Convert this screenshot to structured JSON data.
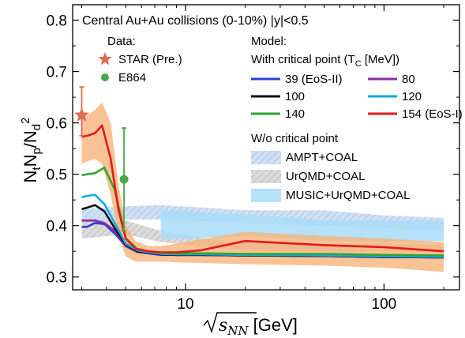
{
  "chart_data": {
    "type": "line",
    "title": "Central Au+Au collisions (0-10%) |y|<0.5",
    "ylabel": {
      "main": "N",
      "sub1": "t",
      "mid": "N",
      "sub2": "p",
      "slash": "/N",
      "sub3": "d",
      "sup": "2"
    },
    "xlabel": {
      "math": "s",
      "sub": "NN",
      "unit": " [GeV]"
    },
    "x_scale": "log",
    "xlim": [
      2.7,
      240
    ],
    "ylim": [
      0.275,
      0.83
    ],
    "x_ticks": [
      10,
      100
    ],
    "x_tick_labels": [
      "10",
      "100"
    ],
    "y_ticks": [
      0.3,
      0.4,
      0.5,
      0.6,
      0.7,
      0.8
    ],
    "y_tick_labels": [
      "0.3",
      "0.4",
      "0.5",
      "0.6",
      "0.7",
      "0.8"
    ],
    "grid": false,
    "legend_placement": "top-right",
    "data_header": "Data:",
    "model_header": "Model:",
    "critical_header": "With critical point (T",
    "critical_header_sub": "C",
    "critical_header_end": " [MeV])",
    "nocritical_header": "W/o critical point",
    "experiments": [
      {
        "name": "STAR (Pre.)",
        "marker": "star",
        "color": "#e06a52",
        "x": 3.0,
        "y": 0.615,
        "yerr_low": 0.04,
        "yerr_high": 0.055
      },
      {
        "name": "E864",
        "marker": "circle",
        "color": "#49a84a",
        "x": 4.9,
        "y": 0.49,
        "yerr_low": 0.1,
        "yerr_high": 0.1
      }
    ],
    "series": [
      {
        "name": "39 (EoS-II)",
        "color": "#2b3fd6",
        "x": [
          3.0,
          3.2,
          3.5,
          3.9,
          4.4,
          5.0,
          5.7,
          6.5,
          7.5,
          9,
          12,
          20,
          50,
          100,
          200
        ],
        "y": [
          0.397,
          0.398,
          0.405,
          0.403,
          0.385,
          0.36,
          0.349,
          0.346,
          0.343,
          0.343,
          0.343,
          0.342,
          0.341,
          0.339,
          0.338
        ]
      },
      {
        "name": "80",
        "color": "#8e2aa8",
        "x": [
          3.0,
          3.2,
          3.5,
          3.9,
          4.4,
          5.0,
          5.7,
          6.5,
          7.5,
          9,
          12,
          20,
          50,
          100,
          200
        ],
        "y": [
          0.41,
          0.41,
          0.41,
          0.405,
          0.39,
          0.36,
          0.349,
          0.347,
          0.344,
          0.343,
          0.343,
          0.342,
          0.341,
          0.339,
          0.338
        ]
      },
      {
        "name": "100",
        "color": "#111111",
        "x": [
          3.0,
          3.2,
          3.5,
          3.9,
          4.4,
          5.0,
          5.7,
          6.5,
          7.5,
          9,
          12,
          20,
          50,
          100,
          200
        ],
        "y": [
          0.432,
          0.435,
          0.44,
          0.428,
          0.395,
          0.363,
          0.35,
          0.347,
          0.344,
          0.343,
          0.343,
          0.342,
          0.341,
          0.339,
          0.338
        ]
      },
      {
        "name": "120",
        "color": "#1aa6e6",
        "x": [
          3.0,
          3.2,
          3.5,
          3.9,
          4.4,
          5.0,
          5.7,
          6.5,
          7.5,
          9,
          12,
          20,
          50,
          100,
          200
        ],
        "y": [
          0.455,
          0.458,
          0.46,
          0.442,
          0.405,
          0.365,
          0.352,
          0.348,
          0.345,
          0.344,
          0.344,
          0.343,
          0.342,
          0.34,
          0.339
        ]
      },
      {
        "name": "140",
        "color": "#2ea52e",
        "x": [
          3.0,
          3.2,
          3.5,
          3.9,
          4.4,
          5.0,
          5.7,
          6.5,
          7.5,
          9,
          12,
          20,
          50,
          100,
          200
        ],
        "y": [
          0.498,
          0.5,
          0.502,
          0.513,
          0.47,
          0.375,
          0.355,
          0.35,
          0.347,
          0.346,
          0.346,
          0.345,
          0.345,
          0.343,
          0.342
        ]
      },
      {
        "name": "154 (EoS-I)",
        "color": "#e3191c",
        "x": [
          3.0,
          3.2,
          3.5,
          3.8,
          4.2,
          4.6,
          5.0,
          5.6,
          6.5,
          7.5,
          9,
          12,
          20,
          50,
          100,
          200
        ],
        "y": [
          0.573,
          0.575,
          0.58,
          0.595,
          0.53,
          0.43,
          0.375,
          0.355,
          0.35,
          0.348,
          0.348,
          0.352,
          0.37,
          0.362,
          0.358,
          0.35
        ]
      }
    ],
    "bands": [
      {
        "name": "AMPT+COAL",
        "color": "#7aa3d8",
        "opacity": 0.55,
        "pattern": "hatch-blue",
        "x": [
          3.0,
          4.6,
          7.5,
          20,
          50,
          100,
          200
        ],
        "low": [
          0.405,
          0.412,
          0.412,
          0.405,
          0.4,
          0.395,
          0.39
        ],
        "high": [
          0.432,
          0.437,
          0.44,
          0.43,
          0.43,
          0.42,
          0.415
        ]
      },
      {
        "name": "UrQMD+COAL",
        "color": "#9a9a9a",
        "opacity": 0.55,
        "pattern": "hatch-gray",
        "x": [
          3.0,
          5.0,
          7.5,
          15,
          30,
          60,
          100,
          200
        ],
        "low": [
          0.375,
          0.383,
          0.368,
          0.355,
          0.35,
          0.35,
          0.35,
          0.348
        ],
        "high": [
          0.41,
          0.41,
          0.39,
          0.37,
          0.365,
          0.365,
          0.365,
          0.363
        ]
      },
      {
        "name": "MUSIC+UrQMD+COAL",
        "color": "#a8dcf8",
        "opacity": 0.85,
        "pattern": "none",
        "x": [
          7.5,
          20,
          50,
          100,
          200
        ],
        "low": [
          0.373,
          0.38,
          0.37,
          0.368,
          0.37
        ],
        "high": [
          0.43,
          0.422,
          0.41,
          0.41,
          0.41
        ]
      },
      {
        "name": "orange-band",
        "color": "#f7b277",
        "opacity": 0.78,
        "pattern": "none",
        "x": [
          3.0,
          3.2,
          3.5,
          3.8,
          4.2,
          4.6,
          5.0,
          5.6,
          6.5,
          7.5,
          10,
          20,
          50,
          100,
          200
        ],
        "low": [
          0.52,
          0.525,
          0.53,
          0.52,
          0.46,
          0.38,
          0.34,
          0.33,
          0.33,
          0.33,
          0.328,
          0.325,
          0.322,
          0.318,
          0.31
        ],
        "high": [
          0.61,
          0.615,
          0.625,
          0.64,
          0.6,
          0.48,
          0.4,
          0.37,
          0.36,
          0.36,
          0.368,
          0.388,
          0.38,
          0.375,
          0.368
        ]
      }
    ]
  }
}
